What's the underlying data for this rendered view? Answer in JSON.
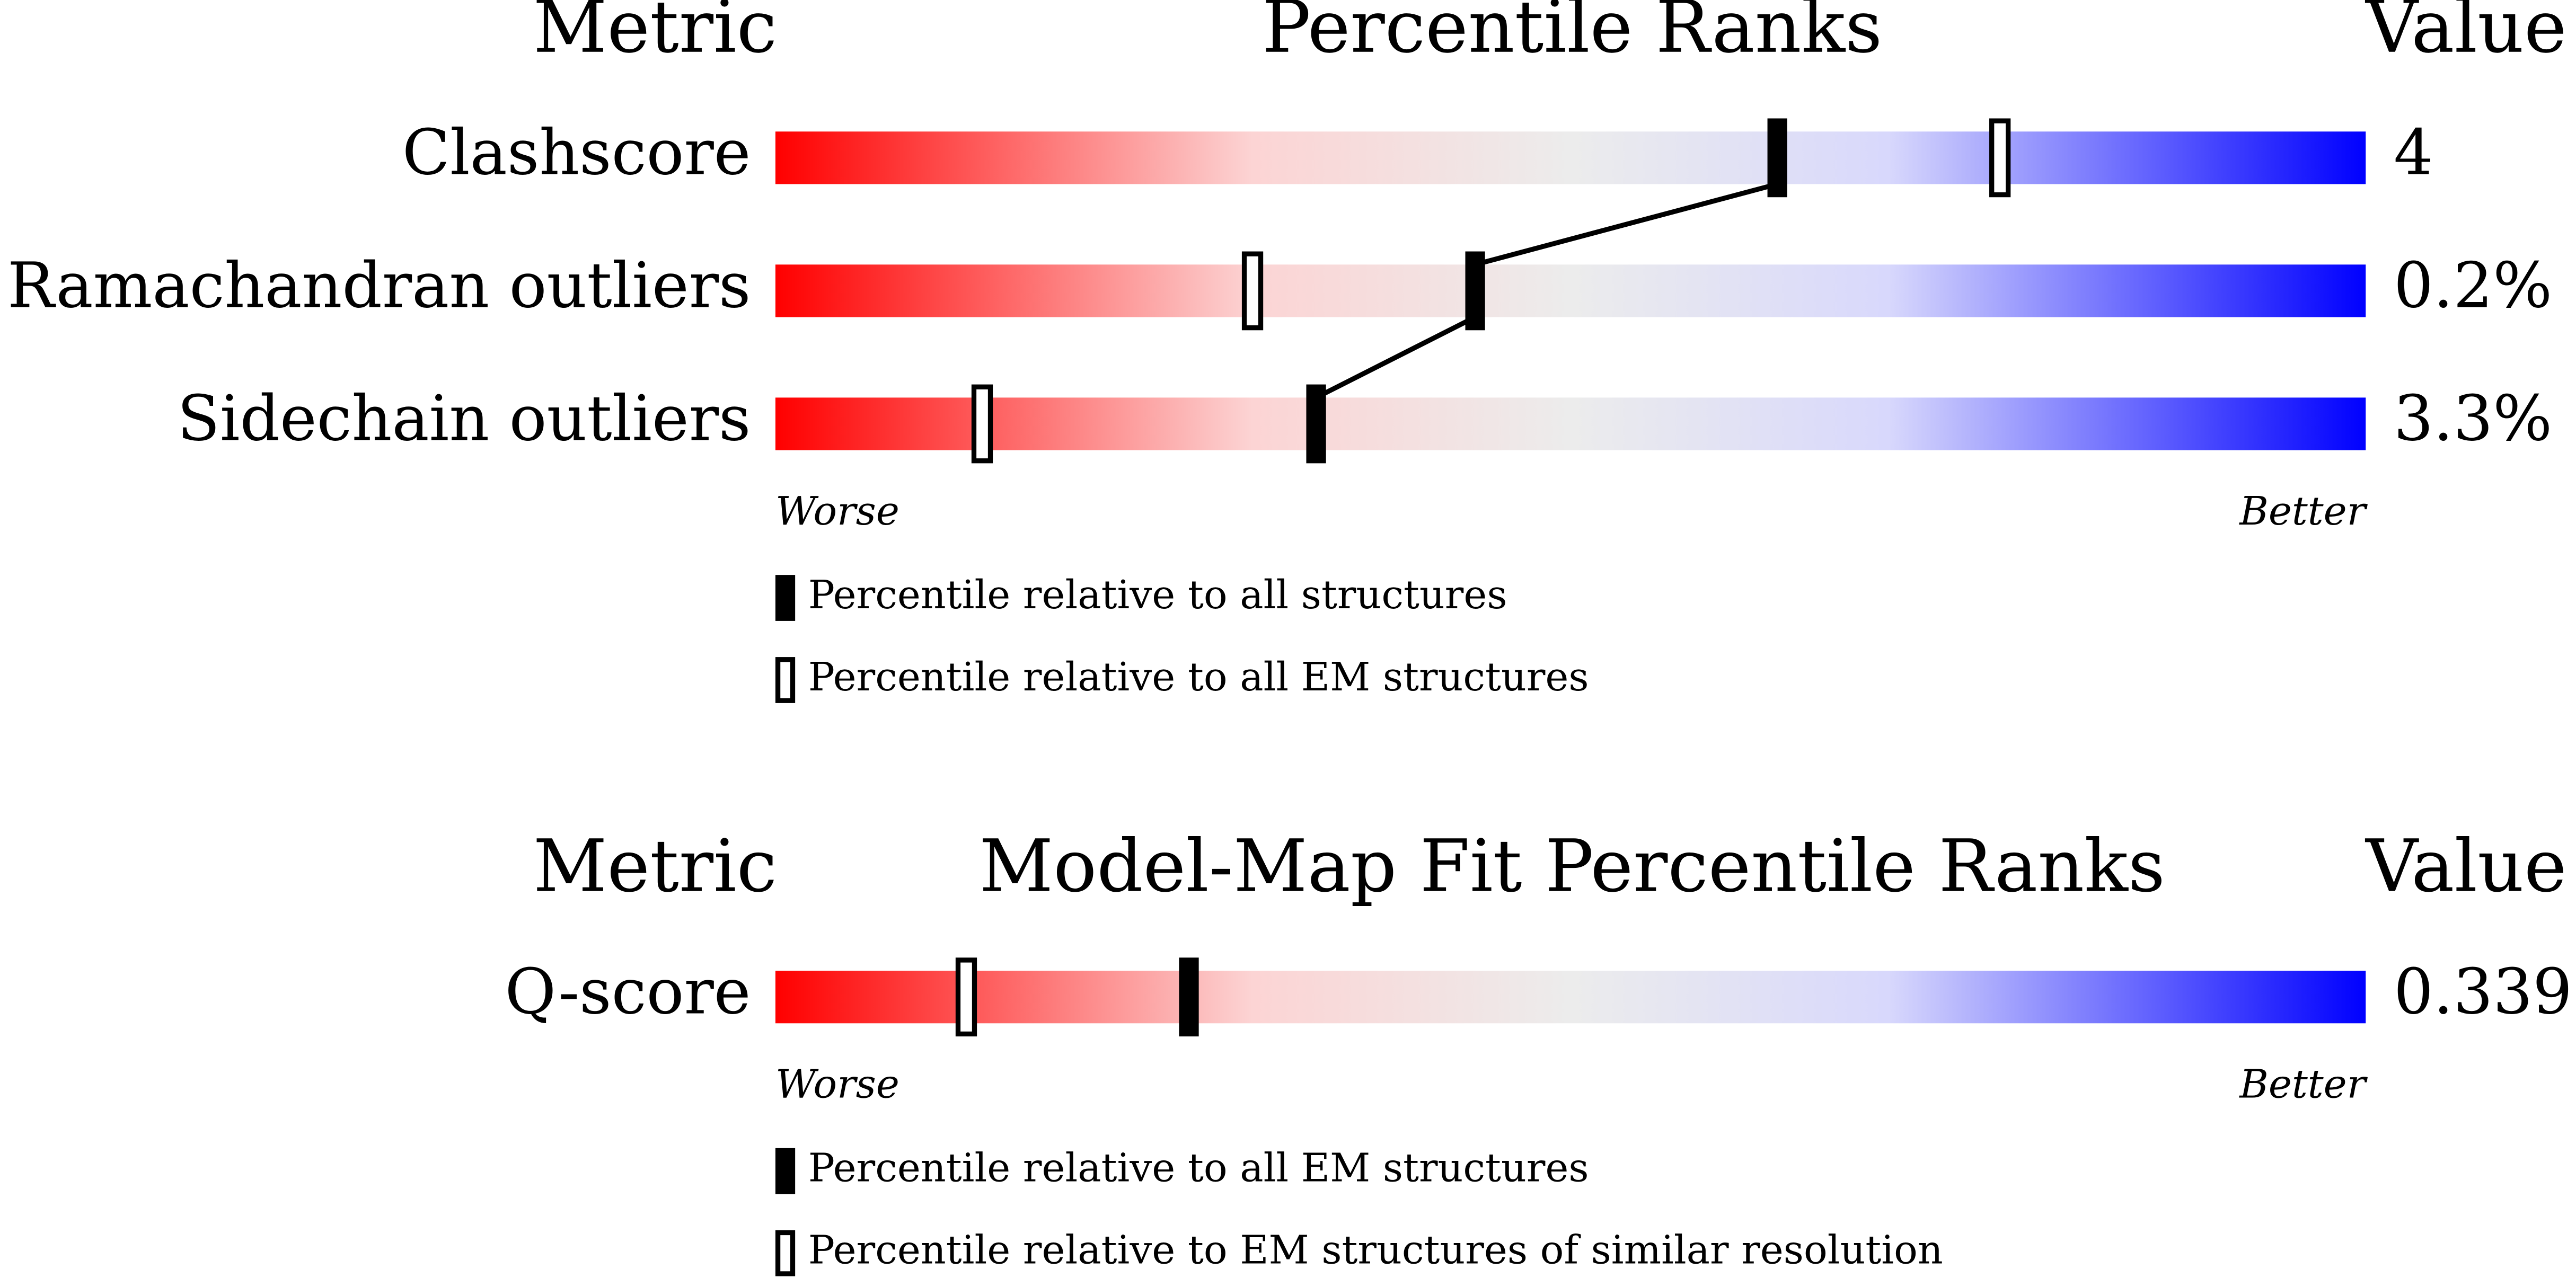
{
  "chart_data": [
    {
      "type": "percentile-slider",
      "header_left": "Metric",
      "title": "Percentile Ranks",
      "header_right": "Value",
      "xlim": [
        0,
        100
      ],
      "categories": [
        "Clashscore",
        "Ramachandran outliers",
        "Sidechain outliers"
      ],
      "value_texts": [
        "4",
        "0.2%",
        "3.3%"
      ],
      "series": [
        {
          "name": "Percentile relative to all structures",
          "style": "filled",
          "color": "#000000",
          "values": [
            63,
            44,
            34
          ]
        },
        {
          "name": "Percentile relative to all EM structures",
          "style": "open",
          "color": "#000000",
          "values": [
            77,
            30,
            13
          ]
        }
      ],
      "worse_label": "Worse",
      "better_label": "Better"
    },
    {
      "type": "percentile-slider",
      "header_left": "Metric",
      "title": "Model-Map Fit Percentile Ranks",
      "header_right": "Value",
      "xlim": [
        0,
        100
      ],
      "categories": [
        "Q-score"
      ],
      "value_texts": [
        "0.339"
      ],
      "series": [
        {
          "name": "Percentile relative to all EM structures",
          "style": "filled",
          "color": "#000000",
          "values": [
            26
          ]
        },
        {
          "name": "Percentile relative to EM structures of similar resolution",
          "style": "open",
          "color": "#000000",
          "values": [
            12
          ]
        }
      ],
      "worse_label": "Worse",
      "better_label": "Better"
    }
  ]
}
